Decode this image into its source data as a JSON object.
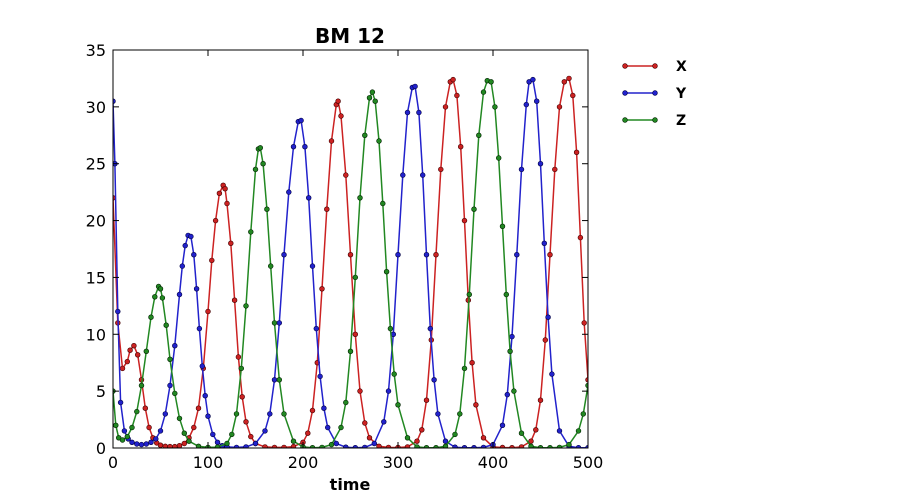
{
  "chart_data": {
    "type": "line",
    "title": "BM 12",
    "xlabel": "time",
    "ylabel": "",
    "xlim": [
      0,
      500
    ],
    "ylim": [
      0,
      35
    ],
    "x_ticks": [
      0,
      100,
      200,
      300,
      400,
      500
    ],
    "y_ticks": [
      0,
      5,
      10,
      15,
      20,
      25,
      30,
      35
    ],
    "grid": false,
    "legend_position": "outside-right",
    "markers": true,
    "series": [
      {
        "name": "X",
        "color": "#cc2222",
        "edge_color": "#440000",
        "x": [
          0,
          5,
          10,
          15,
          18,
          22,
          26,
          30,
          34,
          38,
          42,
          46,
          50,
          55,
          60,
          65,
          70,
          75,
          80,
          85,
          90,
          95,
          100,
          104,
          108,
          112,
          116,
          118,
          120,
          124,
          128,
          132,
          136,
          140,
          145,
          150,
          160,
          170,
          180,
          190,
          200,
          205,
          210,
          215,
          220,
          225,
          230,
          235,
          237,
          240,
          245,
          250,
          255,
          260,
          265,
          270,
          280,
          290,
          300,
          310,
          320,
          325,
          330,
          335,
          340,
          345,
          350,
          355,
          358,
          362,
          366,
          370,
          374,
          378,
          382,
          390,
          400,
          410,
          420,
          430,
          440,
          445,
          450,
          455,
          460,
          465,
          470,
          475,
          480,
          484,
          488,
          492,
          496,
          500
        ],
        "values": [
          22.0,
          11.0,
          7.0,
          7.6,
          8.6,
          9.0,
          8.2,
          6.0,
          3.5,
          1.8,
          0.9,
          0.45,
          0.25,
          0.15,
          0.12,
          0.12,
          0.2,
          0.4,
          0.9,
          1.8,
          3.5,
          7.0,
          12.0,
          16.5,
          20.0,
          22.4,
          23.1,
          22.8,
          21.5,
          18.0,
          13.0,
          8.0,
          4.5,
          2.3,
          1.0,
          0.4,
          0.1,
          0.05,
          0.05,
          0.12,
          0.5,
          1.3,
          3.3,
          7.5,
          14.0,
          21.0,
          27.0,
          30.2,
          30.5,
          29.2,
          24.0,
          17.0,
          10.0,
          5.0,
          2.2,
          0.9,
          0.15,
          0.05,
          0.04,
          0.1,
          0.6,
          1.6,
          4.2,
          9.5,
          17.0,
          24.5,
          30.0,
          32.2,
          32.4,
          31.0,
          26.5,
          20.0,
          13.0,
          7.5,
          3.8,
          0.9,
          0.1,
          0.04,
          0.03,
          0.1,
          0.6,
          1.6,
          4.2,
          9.5,
          17.0,
          24.5,
          30.0,
          32.2,
          32.5,
          31.0,
          26.0,
          18.5,
          11.0,
          6.0
        ]
      },
      {
        "name": "Y",
        "color": "#2222cc",
        "edge_color": "#000044",
        "x": [
          0,
          2,
          5,
          8,
          12,
          16,
          20,
          25,
          30,
          35,
          40,
          45,
          50,
          55,
          60,
          65,
          70,
          73,
          76,
          79,
          82,
          85,
          88,
          91,
          94,
          97,
          100,
          105,
          110,
          115,
          120,
          130,
          140,
          150,
          160,
          165,
          170,
          175,
          180,
          185,
          190,
          195,
          198,
          202,
          206,
          210,
          214,
          218,
          222,
          226,
          235,
          245,
          255,
          265,
          275,
          285,
          290,
          295,
          300,
          305,
          310,
          315,
          318,
          322,
          326,
          330,
          334,
          338,
          342,
          350,
          360,
          370,
          380,
          390,
          400,
          410,
          415,
          420,
          425,
          430,
          435,
          438,
          442,
          446,
          450,
          454,
          458,
          462,
          470,
          480,
          490,
          500
        ],
        "values": [
          30.5,
          25.0,
          12.0,
          4.0,
          1.5,
          0.8,
          0.5,
          0.35,
          0.3,
          0.35,
          0.5,
          0.8,
          1.5,
          3.0,
          5.5,
          9.0,
          13.5,
          16.0,
          17.8,
          18.7,
          18.6,
          17.0,
          14.0,
          10.5,
          7.2,
          4.6,
          2.8,
          1.2,
          0.5,
          0.2,
          0.1,
          0.05,
          0.1,
          0.4,
          1.5,
          3.0,
          6.0,
          11.0,
          17.0,
          22.5,
          26.5,
          28.7,
          28.8,
          26.5,
          22.0,
          16.0,
          10.5,
          6.3,
          3.5,
          1.8,
          0.4,
          0.07,
          0.03,
          0.05,
          0.4,
          2.3,
          5.0,
          10.0,
          17.0,
          24.0,
          29.5,
          31.7,
          31.8,
          29.5,
          24.0,
          17.0,
          10.5,
          6.0,
          3.0,
          0.6,
          0.07,
          0.03,
          0.03,
          0.05,
          0.3,
          2.0,
          4.7,
          9.8,
          17.0,
          24.5,
          30.2,
          32.2,
          32.4,
          30.5,
          25.0,
          18.0,
          11.5,
          6.5,
          1.5,
          0.15,
          0.03,
          0.03
        ]
      },
      {
        "name": "Z",
        "color": "#228822",
        "edge_color": "#002200",
        "x": [
          0,
          3,
          6,
          10,
          15,
          20,
          25,
          30,
          35,
          40,
          44,
          48,
          50,
          52,
          56,
          60,
          65,
          70,
          75,
          80,
          90,
          100,
          110,
          120,
          125,
          130,
          135,
          140,
          145,
          150,
          153,
          155,
          158,
          162,
          166,
          170,
          175,
          180,
          190,
          200,
          210,
          220,
          230,
          240,
          245,
          250,
          255,
          260,
          265,
          270,
          273,
          276,
          280,
          284,
          288,
          292,
          296,
          300,
          310,
          320,
          330,
          340,
          350,
          360,
          365,
          370,
          375,
          380,
          385,
          390,
          394,
          398,
          402,
          406,
          410,
          414,
          418,
          422,
          430,
          440,
          450,
          460,
          470,
          480,
          490,
          495,
          500
        ],
        "values": [
          5.0,
          2.0,
          0.9,
          0.7,
          1.0,
          1.8,
          3.2,
          5.5,
          8.5,
          11.5,
          13.3,
          14.2,
          14.0,
          13.2,
          10.8,
          7.8,
          4.8,
          2.6,
          1.3,
          0.6,
          0.15,
          0.05,
          0.08,
          0.4,
          1.2,
          3.0,
          7.0,
          12.5,
          19.0,
          24.5,
          26.3,
          26.4,
          25.0,
          21.0,
          16.0,
          11.0,
          6.0,
          3.0,
          0.6,
          0.1,
          0.03,
          0.05,
          0.3,
          1.8,
          4.0,
          8.5,
          15.0,
          22.0,
          27.5,
          30.8,
          31.3,
          30.5,
          27.0,
          21.5,
          15.5,
          10.5,
          6.5,
          3.8,
          0.9,
          0.1,
          0.03,
          0.03,
          0.15,
          1.2,
          3.0,
          7.0,
          13.5,
          21.0,
          27.5,
          31.3,
          32.3,
          32.2,
          30.0,
          25.5,
          19.5,
          13.5,
          8.5,
          5.0,
          1.3,
          0.15,
          0.03,
          0.03,
          0.05,
          0.3,
          1.5,
          3.0,
          5.5
        ]
      }
    ]
  }
}
